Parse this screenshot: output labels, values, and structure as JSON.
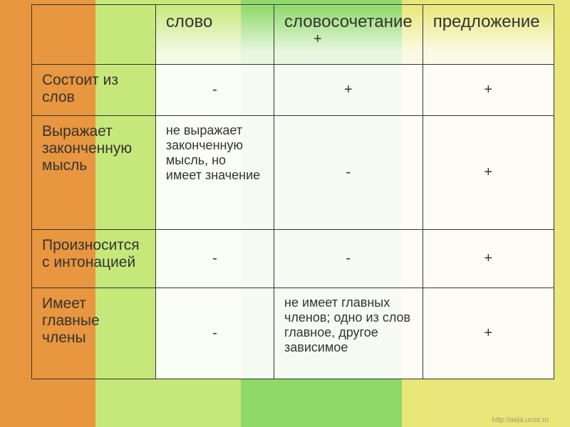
{
  "stripes": {
    "colors": [
      "#e8963f",
      "#c6e87a",
      "#8fd968",
      "#e9e77a"
    ],
    "widths": [
      134,
      204,
      226,
      236
    ]
  },
  "table": {
    "header": {
      "col1": "",
      "col2": "слово",
      "col3": "словосочетание",
      "col4": "предложение"
    },
    "rows": [
      {
        "label": "Состоит из слов",
        "c2": "-",
        "c2_center": true,
        "c3": "+",
        "c3_center": true,
        "c4": "+",
        "c4_center": true
      },
      {
        "label": "Выражает законченную мысль",
        "c2": "не выражает законченную мысль, но имеет значение",
        "c2_center": false,
        "c3": "-",
        "c3_center": true,
        "c4": "+",
        "c4_center": true
      },
      {
        "label": "Произносится с интонацией",
        "c2": "-",
        "c2_center": true,
        "c3": "-",
        "c3_center": true,
        "c4": "+",
        "c4_center": true
      },
      {
        "label": "Имеет главные члены",
        "c2": "-",
        "c2_center": true,
        "c3": "не имеет главных членов; одно из слов главное, другое зависимое",
        "c3_center": false,
        "c4": "+",
        "c4_center": true
      }
    ]
  },
  "overlay_plus": "+",
  "footer": "http://aida.ucoz.ru"
}
